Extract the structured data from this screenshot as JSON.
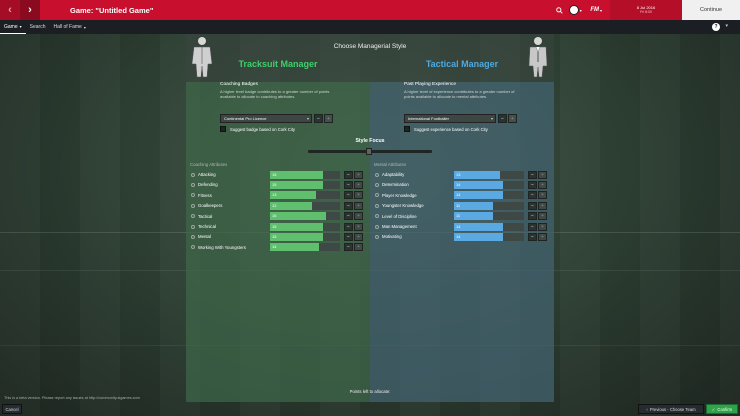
{
  "header": {
    "title": "Game: \"Untitled Game\"",
    "date_line1": "8 Jul 2016",
    "date_line2": "Fri 8:00",
    "continue_label": "Continue",
    "fm_logo": "FM"
  },
  "submenu": {
    "items": [
      "Game",
      "Search",
      "Hall of Fame"
    ],
    "help": "?"
  },
  "panel": {
    "title": "Choose Managerial Style",
    "left": {
      "title": "Tracksuit Manager",
      "section_head": "Coaching Badges",
      "section_desc": "A higher level badge contributes to a greater number of points available to allocate to coaching attributes.",
      "dropdown_value": "Continental Pro Licence",
      "checkbox_label": "Suggest badge based on Cork City",
      "attr_head": "Coaching Attributes",
      "color": "#5fbf6e",
      "attributes": [
        {
          "label": "Attacking",
          "value": "15",
          "pct": 0.75
        },
        {
          "label": "Defending",
          "value": "15",
          "pct": 0.75
        },
        {
          "label": "Fitness",
          "value": "13",
          "pct": 0.65
        },
        {
          "label": "Goalkeepers",
          "value": "12",
          "pct": 0.6
        },
        {
          "label": "Tactical",
          "value": "16",
          "pct": 0.8
        },
        {
          "label": "Technical",
          "value": "15",
          "pct": 0.75
        },
        {
          "label": "Mental",
          "value": "15",
          "pct": 0.75
        },
        {
          "label": "Working With Youngsters",
          "value": "14",
          "pct": 0.7
        }
      ]
    },
    "right": {
      "title": "Tactical Manager",
      "section_head": "Past Playing Experience",
      "section_desc": "A higher level of experience contributes to a greater number of points available to allocate to mental attributes.",
      "dropdown_value": "International Footballer",
      "checkbox_label": "Suggest experience based on Cork City",
      "attr_head": "Mental Attributes",
      "color": "#5aa9e3",
      "attributes": [
        {
          "label": "Adaptability",
          "value": "13",
          "pct": 0.65
        },
        {
          "label": "Determination",
          "value": "14",
          "pct": 0.7
        },
        {
          "label": "Player Knowledge",
          "value": "14",
          "pct": 0.7
        },
        {
          "label": "Youngster Knowledge",
          "value": "11",
          "pct": 0.55
        },
        {
          "label": "Level of Discipline",
          "value": "11",
          "pct": 0.55
        },
        {
          "label": "Man Management",
          "value": "14",
          "pct": 0.7
        },
        {
          "label": "Motivating",
          "value": "14",
          "pct": 0.7
        }
      ]
    },
    "style_focus": "Style Focus",
    "points_left": "Points left to allocate:"
  },
  "bottom": {
    "note": "This is a beta version. Please report any issues at http://community.sigames.com",
    "cancel": "Cancel",
    "previous": "Previous - Choose Team",
    "confirm": "Confirm"
  }
}
